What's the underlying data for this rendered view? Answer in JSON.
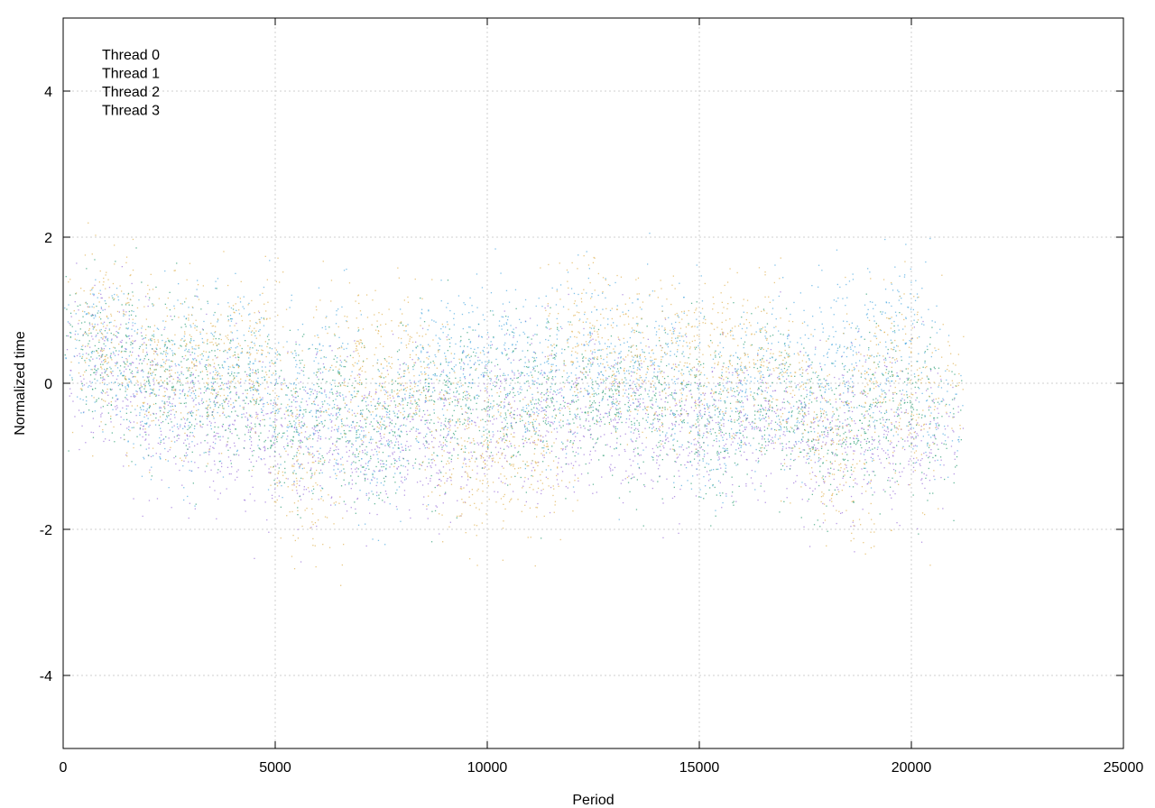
{
  "chart_data": {
    "type": "scatter",
    "title": "",
    "xlabel": "Period",
    "ylabel": "Normalized time",
    "xlim": [
      0,
      25000
    ],
    "ylim": [
      -5,
      5
    ],
    "x_ticks": [
      0,
      5000,
      10000,
      15000,
      20000,
      25000
    ],
    "x_tick_labels": [
      "0",
      "5000",
      "10000",
      "15000",
      "20000",
      "25000"
    ],
    "y_ticks": [
      -4,
      -2,
      0,
      2,
      4
    ],
    "y_tick_labels": [
      "-4",
      "-2",
      "0",
      "2",
      "4"
    ],
    "grid": true,
    "legend_position": "top-left",
    "series": [
      {
        "name": "Thread 0",
        "color": "#9a6fd8",
        "points": [
          [
            500,
            0.4
          ],
          [
            1000,
            0.2
          ],
          [
            1500,
            0.0
          ],
          [
            2000,
            -0.2
          ],
          [
            2500,
            -0.4
          ],
          [
            3000,
            -0.3
          ],
          [
            3500,
            -0.5
          ],
          [
            4000,
            -0.6
          ],
          [
            4500,
            -0.5
          ],
          [
            5000,
            -0.8
          ],
          [
            5500,
            -0.7
          ],
          [
            6000,
            -0.8
          ],
          [
            6500,
            -0.5
          ],
          [
            7000,
            -0.9
          ],
          [
            7500,
            -0.8
          ],
          [
            8000,
            -0.6
          ],
          [
            8500,
            -0.7
          ],
          [
            9000,
            -0.9
          ],
          [
            9500,
            -0.4
          ],
          [
            10000,
            -0.3
          ],
          [
            10500,
            -0.5
          ],
          [
            11000,
            -0.2
          ],
          [
            11500,
            -0.6
          ],
          [
            12000,
            -0.4
          ],
          [
            12500,
            -0.5
          ],
          [
            13000,
            -0.3
          ],
          [
            13500,
            -0.6
          ],
          [
            14000,
            -0.7
          ],
          [
            14500,
            -0.4
          ],
          [
            15000,
            -0.5
          ],
          [
            15500,
            -0.4
          ],
          [
            16000,
            -0.6
          ],
          [
            16500,
            -0.5
          ],
          [
            17000,
            -0.3
          ],
          [
            17500,
            -0.6
          ],
          [
            18000,
            -0.5
          ],
          [
            18500,
            -1.0
          ],
          [
            19000,
            -0.8
          ],
          [
            19500,
            -0.6
          ],
          [
            20000,
            -0.7
          ],
          [
            20600,
            -0.9
          ]
        ]
      },
      {
        "name": "Thread 1",
        "color": "#2a9d72",
        "points": [
          [
            500,
            0.5
          ],
          [
            1000,
            0.4
          ],
          [
            1500,
            0.3
          ],
          [
            2000,
            0.1
          ],
          [
            2500,
            0.0
          ],
          [
            3000,
            0.2
          ],
          [
            3500,
            -0.1
          ],
          [
            4000,
            0.0
          ],
          [
            4500,
            -0.3
          ],
          [
            5000,
            -0.4
          ],
          [
            5500,
            -0.6
          ],
          [
            6000,
            -0.3
          ],
          [
            6500,
            -0.2
          ],
          [
            7000,
            -0.7
          ],
          [
            7500,
            -0.8
          ],
          [
            8000,
            -0.4
          ],
          [
            8500,
            -0.2
          ],
          [
            9000,
            -0.5
          ],
          [
            9500,
            -0.2
          ],
          [
            10000,
            -0.1
          ],
          [
            10500,
            -0.3
          ],
          [
            11000,
            -0.2
          ],
          [
            11500,
            -0.4
          ],
          [
            12000,
            0.0
          ],
          [
            12500,
            -0.2
          ],
          [
            13000,
            -0.3
          ],
          [
            13500,
            -0.4
          ],
          [
            14000,
            -0.3
          ],
          [
            14500,
            -0.1
          ],
          [
            15000,
            -0.6
          ],
          [
            15500,
            -0.5
          ],
          [
            16000,
            -0.3
          ],
          [
            16500,
            -0.2
          ],
          [
            17000,
            -0.4
          ],
          [
            17500,
            -0.6
          ],
          [
            18000,
            -0.7
          ],
          [
            18500,
            -0.6
          ],
          [
            19000,
            -0.5
          ],
          [
            19500,
            -0.1
          ],
          [
            20000,
            -0.4
          ],
          [
            20600,
            -0.6
          ]
        ]
      },
      {
        "name": "Thread 2",
        "color": "#4aa8e0",
        "points": [
          [
            500,
            0.6
          ],
          [
            1000,
            0.5
          ],
          [
            1500,
            0.2
          ],
          [
            2000,
            -0.1
          ],
          [
            2500,
            -0.6
          ],
          [
            3000,
            0.5
          ],
          [
            3500,
            0.0
          ],
          [
            4000,
            0.3
          ],
          [
            4500,
            0.4
          ],
          [
            5000,
            0.0
          ],
          [
            5500,
            -0.5
          ],
          [
            6000,
            -0.2
          ],
          [
            6500,
            0.3
          ],
          [
            7000,
            -0.9
          ],
          [
            7500,
            -1.0
          ],
          [
            8000,
            -0.3
          ],
          [
            8500,
            0.2
          ],
          [
            9000,
            0.3
          ],
          [
            9500,
            0.1
          ],
          [
            10000,
            0.4
          ],
          [
            10500,
            0.2
          ],
          [
            11000,
            0.3
          ],
          [
            11500,
            -0.1
          ],
          [
            12000,
            0.5
          ],
          [
            12500,
            0.3
          ],
          [
            13000,
            0.4
          ],
          [
            13500,
            0.0
          ],
          [
            14000,
            0.3
          ],
          [
            14500,
            0.6
          ],
          [
            15000,
            -0.7
          ],
          [
            15500,
            -0.4
          ],
          [
            16000,
            -0.2
          ],
          [
            16500,
            0.2
          ],
          [
            17000,
            0.1
          ],
          [
            17500,
            -0.5
          ],
          [
            18000,
            0.6
          ],
          [
            18500,
            0.4
          ],
          [
            19000,
            -0.2
          ],
          [
            19500,
            0.5
          ],
          [
            20000,
            0.8
          ],
          [
            20600,
            -0.3
          ]
        ]
      },
      {
        "name": "Thread 3",
        "color": "#e0b050",
        "points": [
          [
            500,
            0.5
          ],
          [
            1000,
            0.9
          ],
          [
            1500,
            0.4
          ],
          [
            2000,
            0.1
          ],
          [
            2500,
            0.2
          ],
          [
            3000,
            0.4
          ],
          [
            3500,
            0.3
          ],
          [
            4000,
            0.2
          ],
          [
            4500,
            0.6
          ],
          [
            5000,
            0.1
          ],
          [
            5500,
            -1.2
          ],
          [
            6000,
            -1.5
          ],
          [
            6500,
            0.5
          ],
          [
            7000,
            0.1
          ],
          [
            7500,
            0.2
          ],
          [
            8000,
            0.3
          ],
          [
            8500,
            0.1
          ],
          [
            9000,
            -0.8
          ],
          [
            9500,
            -1.2
          ],
          [
            10000,
            -0.9
          ],
          [
            10500,
            -1.0
          ],
          [
            11000,
            -1.1
          ],
          [
            11500,
            -0.9
          ],
          [
            12000,
            0.6
          ],
          [
            12500,
            0.7
          ],
          [
            13000,
            0.4
          ],
          [
            13500,
            0.2
          ],
          [
            14000,
            0.3
          ],
          [
            14500,
            0.5
          ],
          [
            15000,
            0.1
          ],
          [
            15500,
            0.2
          ],
          [
            16000,
            0.6
          ],
          [
            16500,
            0.4
          ],
          [
            17000,
            0.0
          ],
          [
            17500,
            -0.3
          ],
          [
            18000,
            -0.8
          ],
          [
            18500,
            -1.5
          ],
          [
            19000,
            0.2
          ],
          [
            19500,
            0.4
          ],
          [
            20000,
            -0.5
          ],
          [
            20600,
            0.1
          ]
        ]
      }
    ]
  }
}
